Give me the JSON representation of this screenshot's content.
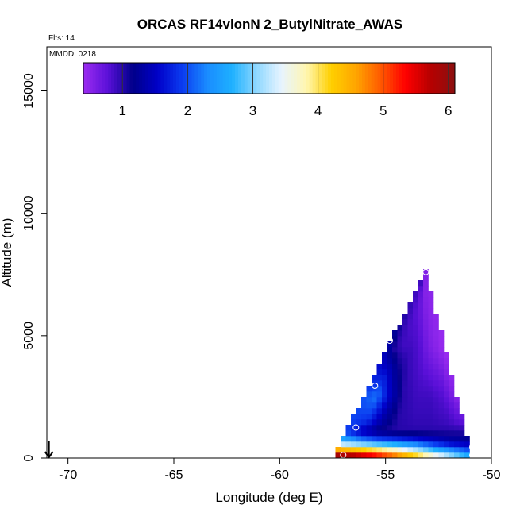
{
  "chart_data": {
    "type": "heatmap",
    "title": "ORCAS RF14vlonN 2_ButylNitrate_AWAS",
    "subtitle_flights": "Flts: 14",
    "subtitle_date": "MMDD: 0218",
    "xlabel": "Longitude (deg E)",
    "ylabel": "Altitude (m)",
    "xlim": [
      -71,
      -50
    ],
    "ylim": [
      0,
      16800
    ],
    "x_ticks": [
      -70,
      -65,
      -60,
      -55,
      -50
    ],
    "x_tick_labels": [
      "-70",
      "-65",
      "-60",
      "-55",
      "-50"
    ],
    "y_ticks": [
      0,
      5000,
      10000,
      15000
    ],
    "y_tick_labels": [
      "0",
      "5000",
      "10000",
      "15000"
    ],
    "colorbar": {
      "min": 0.4,
      "max": 6.1,
      "ticks": [
        1,
        2,
        3,
        4,
        5,
        6
      ],
      "tick_labels": [
        "1",
        "2",
        "3",
        "4",
        "5",
        "6"
      ],
      "colors": [
        "#9b2cf0",
        "#5a10d8",
        "#00008a",
        "#0000c8",
        "#0b3cf0",
        "#1a8cff",
        "#1eb0ff",
        "#8fd8ff",
        "#e8f4ff",
        "#fff6b0",
        "#ffd000",
        "#ffa500",
        "#ff5a00",
        "#ff0000",
        "#b80000",
        "#8a1010"
      ]
    },
    "field": {
      "peak": {
        "lon": -53.1,
        "alt": 7700
      },
      "left_edge": {
        "lon": -57.5,
        "alt": 0
      },
      "right_edge": {
        "lon": -50.9,
        "alt": 0
      },
      "values_by_altitude_band": [
        {
          "alt_range": [
            0,
            300
          ],
          "values": [
            5.9,
            5.7,
            5.3,
            4.8,
            4.2,
            3.6,
            3.0,
            2.5
          ]
        },
        {
          "alt_range": [
            300,
            700
          ],
          "values": [
            3.6,
            3.4,
            3.2,
            3.0,
            2.6,
            2.2,
            1.8,
            1.6
          ]
        },
        {
          "alt_range": [
            700,
            1500
          ],
          "values": [
            1.9,
            1.4,
            1.1,
            1.0,
            1.0,
            1.0,
            1.0,
            1.0
          ]
        },
        {
          "alt_range": [
            1500,
            3500
          ],
          "values": [
            2.0,
            2.2,
            1.5,
            1.0,
            0.9,
            0.9,
            0.8,
            0.5
          ]
        },
        {
          "alt_range": [
            3500,
            5500
          ],
          "values": [
            1.4,
            1.0,
            0.9,
            0.9,
            0.8,
            0.6,
            0.5,
            0.4
          ]
        },
        {
          "alt_range": [
            5500,
            7700
          ],
          "values": [
            0.9,
            0.9,
            0.8,
            0.7,
            0.6,
            0.5,
            0.5,
            0.5
          ]
        }
      ]
    },
    "sample_points": [
      {
        "lon": -53.1,
        "alt": 7600
      },
      {
        "lon": -52.2,
        "alt": 6100
      },
      {
        "lon": -54.8,
        "alt": 4800
      },
      {
        "lon": -51.2,
        "alt": 3950
      },
      {
        "lon": -55.5,
        "alt": 2950
      },
      {
        "lon": -51.1,
        "alt": 2200
      },
      {
        "lon": -56.4,
        "alt": 1250
      },
      {
        "lon": -50.9,
        "alt": 450
      },
      {
        "lon": -57.0,
        "alt": 120
      },
      {
        "lon": -50.9,
        "alt": 110
      }
    ],
    "arrow_marker": {
      "lon": -70.9,
      "alt_top": 700,
      "alt_bottom": 0
    }
  }
}
